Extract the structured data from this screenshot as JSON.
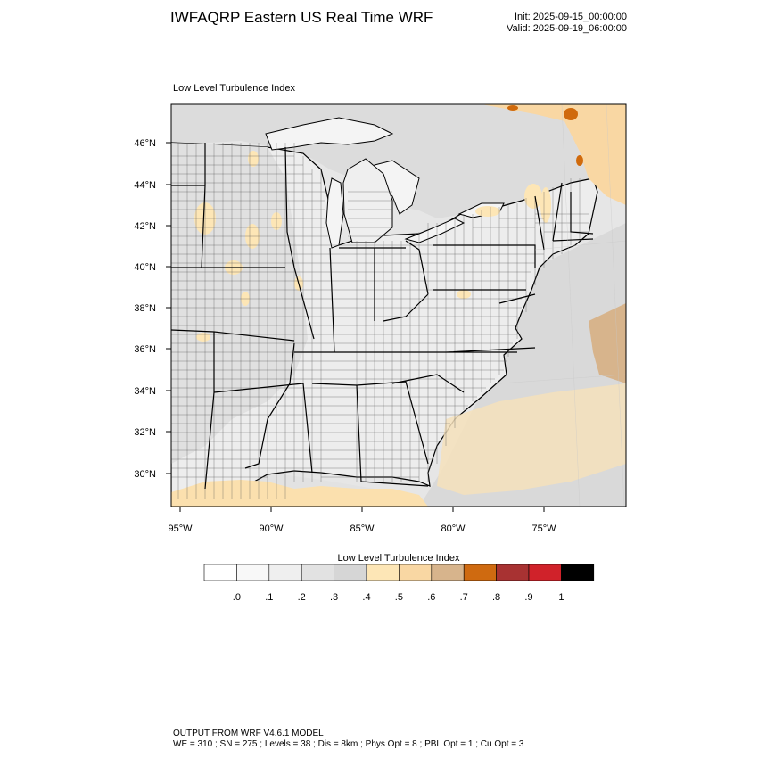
{
  "header": {
    "title": "IWFAQRP Eastern US Real Time WRF",
    "init": "Init: 2025-09-15_00:00:00",
    "valid": "Valid: 2025-09-19_06:00:00"
  },
  "map": {
    "subtitle": "Low Level Turbulence Index",
    "lat_labels": [
      "46°N",
      "44°N",
      "42°N",
      "40°N",
      "38°N",
      "36°N",
      "34°N",
      "32°N",
      "30°N"
    ],
    "lon_labels": [
      "95°W",
      "90°W",
      "85°W",
      "80°W",
      "75°W"
    ],
    "colors": {
      "land_gray": "#e0e0e0",
      "land_light": "#ececec",
      "water_light": "#f1f1f1",
      "lake": "#f4f4f4",
      "tan_light": "#fde6b6",
      "tan": "#f9d7a3",
      "tan_dark": "#d7b48c",
      "orange": "#d06a0c",
      "border": "#000000"
    }
  },
  "colorbar": {
    "title": "Low Level Turbulence Index",
    "colors": [
      "#ffffff",
      "#f8f8f8",
      "#efefef",
      "#e2e2e2",
      "#d6d6d6",
      "#fde6b6",
      "#f9d7a3",
      "#d7b48c",
      "#cf6a10",
      "#a83232",
      "#d0222a",
      "#000000"
    ],
    "labels": [
      ".0",
      ".1",
      ".2",
      ".3",
      ".4",
      ".5",
      ".6",
      ".7",
      ".8",
      ".9",
      "1"
    ]
  },
  "footer": {
    "line1": "OUTPUT FROM WRF V4.6.1 MODEL",
    "line2": "WE = 310 ; SN = 275 ; Levels = 38 ; Dis = 8km ; Phys Opt = 8 ; PBL Opt = 1 ; Cu Opt = 3"
  }
}
